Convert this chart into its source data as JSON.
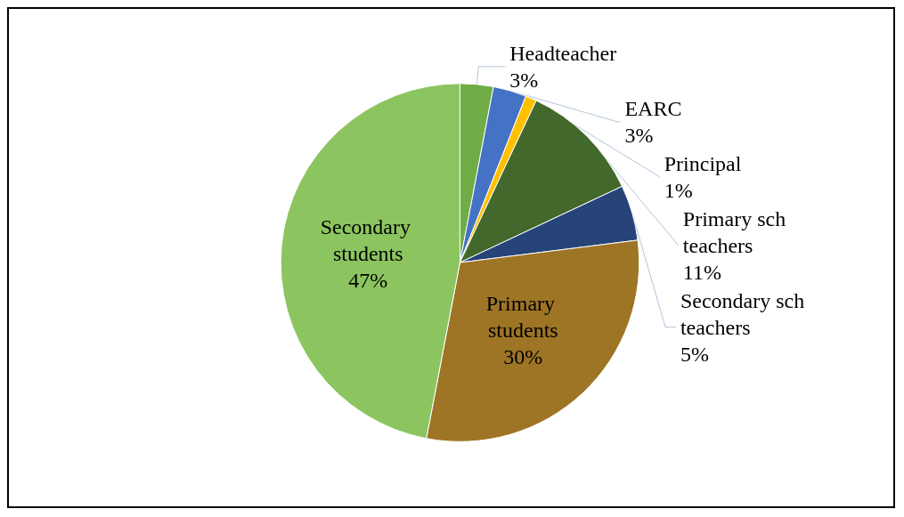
{
  "chart_data": {
    "type": "pie",
    "categories": [
      "Headteacher",
      "EARC",
      "Principal",
      "Primary sch teachers",
      "Secondary sch teachers",
      "Primary students",
      "Secondary students"
    ],
    "values": [
      3,
      3,
      1,
      11,
      5,
      30,
      47
    ],
    "value_labels": [
      "3%",
      "3%",
      "1%",
      "11%",
      "5%",
      "30%",
      "47%"
    ],
    "colors": [
      "#70ad47",
      "#4472c4",
      "#ffc000",
      "#43682b",
      "#264478",
      "#9e7425",
      "#8cc560"
    ],
    "legend": false
  }
}
